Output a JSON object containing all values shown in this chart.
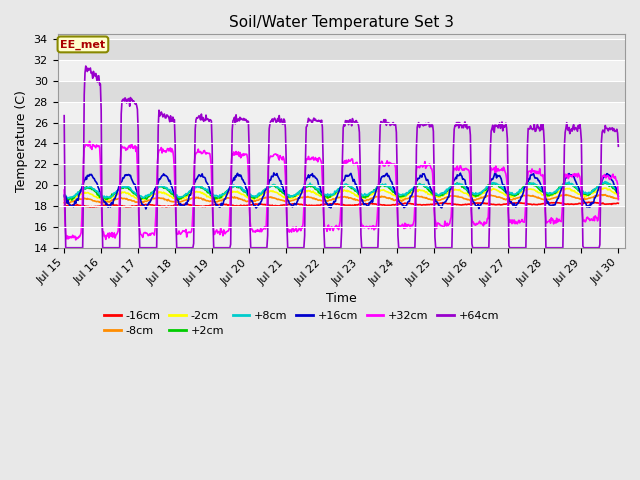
{
  "title": "Soil/Water Temperature Set 3",
  "xlabel": "Time",
  "ylabel": "Temperature (C)",
  "annotation": "EE_met",
  "ylim": [
    14,
    34.5
  ],
  "yticks": [
    14,
    16,
    18,
    20,
    22,
    24,
    26,
    28,
    30,
    32,
    34
  ],
  "x_ticks": [
    15,
    16,
    17,
    18,
    19,
    20,
    21,
    22,
    23,
    24,
    25,
    26,
    27,
    28,
    29,
    30
  ],
  "x_tick_labels": [
    "Jul 15",
    "Jul 16",
    "Jul 17",
    "Jul 18",
    "Jul 19",
    "Jul 20",
    "Jul 21",
    "Jul 22",
    "Jul 23",
    "Jul 24",
    "Jul 25",
    "Jul 26",
    "Jul 27",
    "Jul 28",
    "Jul 29",
    "Jul 30"
  ],
  "series_colors": {
    "-16cm": "#ff0000",
    "-8cm": "#ff8c00",
    "-2cm": "#ffff00",
    "+2cm": "#00cc00",
    "+8cm": "#00cccc",
    "+16cm": "#0000cc",
    "+32cm": "#ff00ff",
    "+64cm": "#9900cc"
  },
  "series_lw": 1.2,
  "fig_bg": "#e8e8e8",
  "plot_bg_light": "#f0f0f0",
  "plot_bg_dark": "#dcdcdc",
  "grid_color": "#ffffff",
  "annotation_fg": "#aa0000",
  "annotation_bg": "#ffffcc",
  "annotation_border": "#888800",
  "title_fontsize": 11,
  "axis_label_fontsize": 9,
  "tick_fontsize": 8,
  "legend_fontsize": 8
}
